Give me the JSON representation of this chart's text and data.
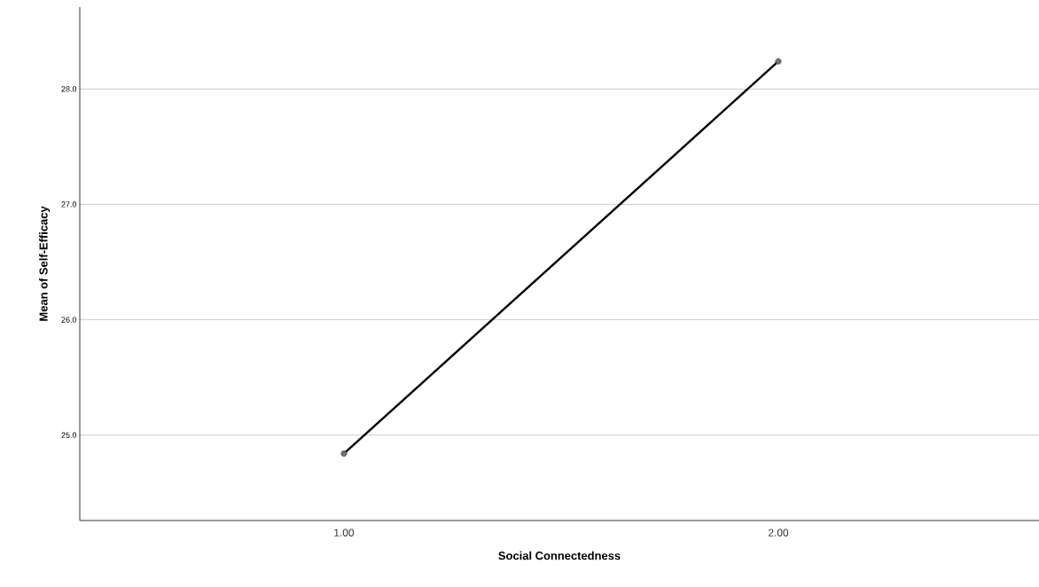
{
  "chart_data": {
    "type": "line",
    "xlabel": "Social Connectedness",
    "ylabel": "Mean of Self-Efficacy",
    "categories": [
      "1.00",
      "2.00"
    ],
    "series": [
      {
        "color": "#000000",
        "values": [
          24.84,
          28.24
        ]
      }
    ],
    "ylim": [
      24.26,
      28.71
    ],
    "yticks": [
      {
        "value": 25,
        "label": "25.0"
      },
      {
        "value": 26,
        "label": "26.0"
      },
      {
        "value": 27,
        "label": "27.0"
      },
      {
        "value": 28,
        "label": "28.0"
      }
    ],
    "grid": "y",
    "marker": "circle",
    "line_style": "solid"
  }
}
